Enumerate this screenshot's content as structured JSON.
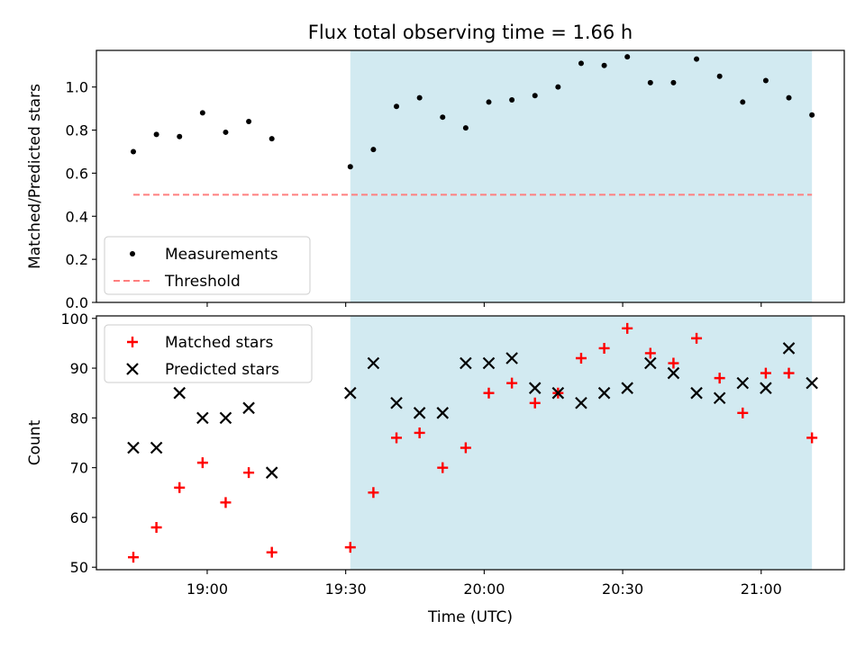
{
  "chart_data": {
    "type": "scatter",
    "title": "Flux total observing time = 1.66 h",
    "xlabel": "Time (UTC)",
    "x_tick_labels": [
      "19:00",
      "19:30",
      "20:00",
      "20:30",
      "21:00"
    ],
    "x_range": [
      "18:36",
      "21:18"
    ],
    "shaded_interval": [
      "19:31",
      "21:11"
    ],
    "colors": {
      "shade": "#add8e6",
      "measurements": "#000000",
      "threshold": "#ff7f7f",
      "matched": "#ff0000",
      "predicted": "#000000"
    },
    "panels": [
      {
        "ylabel": "Matched/Predicted stars",
        "ylim": [
          0,
          1.17
        ],
        "y_ticks": [
          "0.0",
          "0.2",
          "0.4",
          "0.6",
          "0.8",
          "1.0"
        ],
        "legend_position": "lower-left",
        "grid": false,
        "series": [
          {
            "name": "Measurements",
            "style": "dot",
            "points": [
              {
                "x": "18:44",
                "y": 0.7
              },
              {
                "x": "18:49",
                "y": 0.78
              },
              {
                "x": "18:54",
                "y": 0.77
              },
              {
                "x": "18:59",
                "y": 0.88
              },
              {
                "x": "19:04",
                "y": 0.79
              },
              {
                "x": "19:09",
                "y": 0.84
              },
              {
                "x": "19:14",
                "y": 0.76
              },
              {
                "x": "19:31",
                "y": 0.63
              },
              {
                "x": "19:36",
                "y": 0.71
              },
              {
                "x": "19:41",
                "y": 0.91
              },
              {
                "x": "19:46",
                "y": 0.95
              },
              {
                "x": "19:51",
                "y": 0.86
              },
              {
                "x": "19:56",
                "y": 0.81
              },
              {
                "x": "20:01",
                "y": 0.93
              },
              {
                "x": "20:06",
                "y": 0.94
              },
              {
                "x": "20:11",
                "y": 0.96
              },
              {
                "x": "20:16",
                "y": 1.0
              },
              {
                "x": "20:21",
                "y": 1.11
              },
              {
                "x": "20:26",
                "y": 1.1
              },
              {
                "x": "20:31",
                "y": 1.14
              },
              {
                "x": "20:36",
                "y": 1.02
              },
              {
                "x": "20:41",
                "y": 1.02
              },
              {
                "x": "20:46",
                "y": 1.13
              },
              {
                "x": "20:51",
                "y": 1.05
              },
              {
                "x": "20:56",
                "y": 0.93
              },
              {
                "x": "21:01",
                "y": 1.03
              },
              {
                "x": "21:06",
                "y": 0.95
              },
              {
                "x": "21:11",
                "y": 0.87
              }
            ]
          },
          {
            "name": "Threshold",
            "style": "dashed-line",
            "points": [
              {
                "x": "18:44",
                "y": 0.5
              },
              {
                "x": "21:11",
                "y": 0.5
              }
            ]
          }
        ]
      },
      {
        "ylabel": "Count",
        "ylim": [
          49.5,
          100.5
        ],
        "y_ticks": [
          "50",
          "60",
          "70",
          "80",
          "90",
          "100"
        ],
        "legend_position": "upper-left",
        "grid": false,
        "series": [
          {
            "name": "Matched stars",
            "style": "plus",
            "points": [
              {
                "x": "18:44",
                "y": 52
              },
              {
                "x": "18:49",
                "y": 58
              },
              {
                "x": "18:54",
                "y": 66
              },
              {
                "x": "18:59",
                "y": 71
              },
              {
                "x": "19:04",
                "y": 63
              },
              {
                "x": "19:09",
                "y": 69
              },
              {
                "x": "19:14",
                "y": 53
              },
              {
                "x": "19:31",
                "y": 54
              },
              {
                "x": "19:36",
                "y": 65
              },
              {
                "x": "19:41",
                "y": 76
              },
              {
                "x": "19:46",
                "y": 77
              },
              {
                "x": "19:51",
                "y": 70
              },
              {
                "x": "19:56",
                "y": 74
              },
              {
                "x": "20:01",
                "y": 85
              },
              {
                "x": "20:06",
                "y": 87
              },
              {
                "x": "20:11",
                "y": 83
              },
              {
                "x": "20:16",
                "y": 85
              },
              {
                "x": "20:21",
                "y": 92
              },
              {
                "x": "20:26",
                "y": 94
              },
              {
                "x": "20:31",
                "y": 98
              },
              {
                "x": "20:36",
                "y": 93
              },
              {
                "x": "20:41",
                "y": 91
              },
              {
                "x": "20:46",
                "y": 96
              },
              {
                "x": "20:51",
                "y": 88
              },
              {
                "x": "20:56",
                "y": 81
              },
              {
                "x": "21:01",
                "y": 89
              },
              {
                "x": "21:06",
                "y": 89
              },
              {
                "x": "21:11",
                "y": 76
              }
            ]
          },
          {
            "name": "Predicted stars",
            "style": "x",
            "points": [
              {
                "x": "18:44",
                "y": 74
              },
              {
                "x": "18:49",
                "y": 74
              },
              {
                "x": "18:54",
                "y": 85
              },
              {
                "x": "18:59",
                "y": 80
              },
              {
                "x": "19:04",
                "y": 80
              },
              {
                "x": "19:09",
                "y": 82
              },
              {
                "x": "19:14",
                "y": 69
              },
              {
                "x": "19:31",
                "y": 85
              },
              {
                "x": "19:36",
                "y": 91
              },
              {
                "x": "19:41",
                "y": 83
              },
              {
                "x": "19:46",
                "y": 81
              },
              {
                "x": "19:51",
                "y": 81
              },
              {
                "x": "19:56",
                "y": 91
              },
              {
                "x": "20:01",
                "y": 91
              },
              {
                "x": "20:06",
                "y": 92
              },
              {
                "x": "20:11",
                "y": 86
              },
              {
                "x": "20:16",
                "y": 85
              },
              {
                "x": "20:21",
                "y": 83
              },
              {
                "x": "20:26",
                "y": 85
              },
              {
                "x": "20:31",
                "y": 86
              },
              {
                "x": "20:36",
                "y": 91
              },
              {
                "x": "20:41",
                "y": 89
              },
              {
                "x": "20:46",
                "y": 85
              },
              {
                "x": "20:51",
                "y": 84
              },
              {
                "x": "20:56",
                "y": 87
              },
              {
                "x": "21:01",
                "y": 86
              },
              {
                "x": "21:06",
                "y": 94
              },
              {
                "x": "21:11",
                "y": 87
              }
            ]
          }
        ]
      }
    ]
  }
}
